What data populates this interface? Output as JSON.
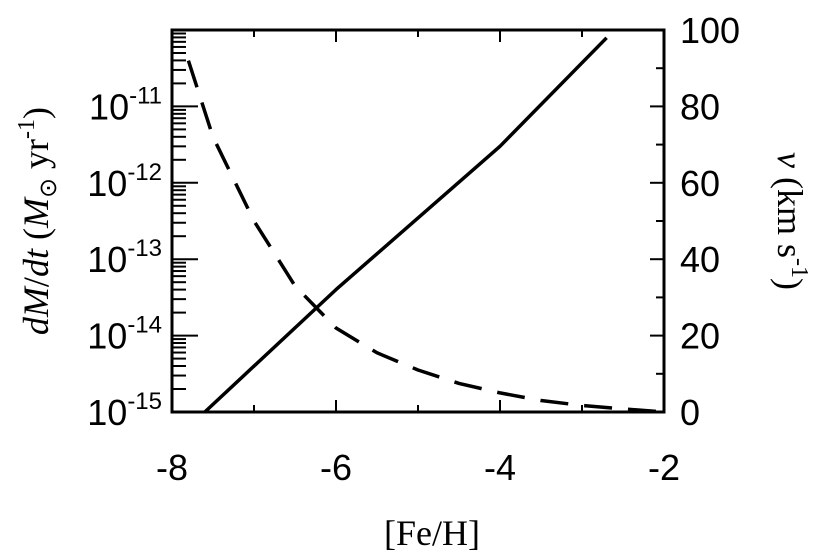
{
  "chart_data": {
    "type": "line",
    "xlabel": "[Fe/H]",
    "xlim": [
      -8,
      -2
    ],
    "x_ticks": [
      "-8",
      "-6",
      "-4",
      "-2"
    ],
    "y_left": {
      "label": "dM/dt (M⊙ yr⁻¹)",
      "scale": "log",
      "ylim": [
        1e-15,
        1e-10
      ],
      "tick_exponents": [
        "-15",
        "-14",
        "-13",
        "-12",
        "-11"
      ],
      "tick_base": "10"
    },
    "y_right": {
      "label": "v (km s⁻¹)",
      "scale": "linear",
      "ylim": [
        0,
        100
      ],
      "ticks": [
        "0",
        "20",
        "40",
        "60",
        "80",
        "100"
      ]
    },
    "series": [
      {
        "axis": "left",
        "style": "solid",
        "x": [
          -7.6,
          -6.0,
          -4.0,
          -2.7
        ],
        "y": [
          1e-15,
          4e-14,
          3e-12,
          7.9e-11
        ]
      },
      {
        "axis": "right",
        "style": "dashed",
        "x": [
          -7.8,
          -7.5,
          -7.0,
          -6.5,
          -6.0,
          -5.5,
          -5.0,
          -4.5,
          -4.0,
          -3.5,
          -3.0,
          -2.5,
          -2.0
        ],
        "y": [
          92,
          72,
          50,
          33,
          22,
          15.5,
          11,
          7.5,
          5,
          3,
          1.7,
          0.8,
          0
        ]
      }
    ]
  }
}
